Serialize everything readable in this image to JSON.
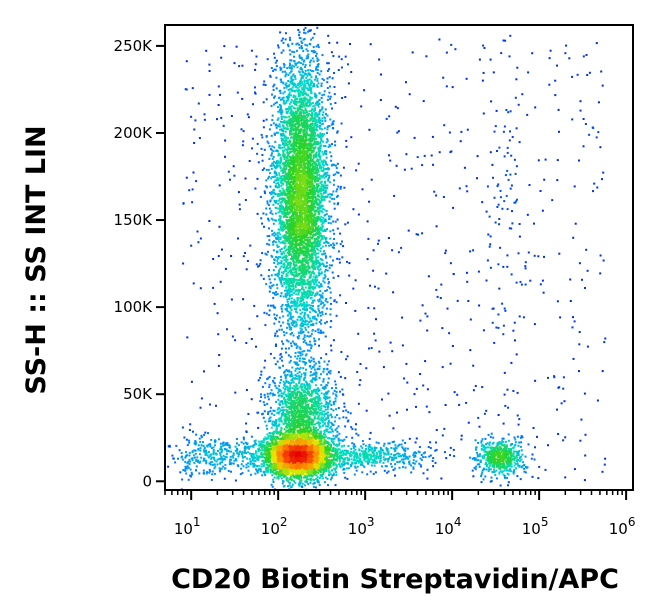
{
  "chart_data": {
    "type": "scatter",
    "plot_style": "flow cytometry density dot plot (blue to green to yellow to red = low to high event density)",
    "xlabel": "CD20 Biotin Streptavidin/APC",
    "ylabel": "SS-H :: SS INT LIN",
    "x_scale": "log",
    "xlim": [
      5,
      1200000
    ],
    "ylim": [
      -5000,
      262000
    ],
    "x_ticks": [
      {
        "value": 10,
        "base": "10",
        "exp": "1"
      },
      {
        "value": 100,
        "base": "10",
        "exp": "2"
      },
      {
        "value": 1000,
        "base": "10",
        "exp": "3"
      },
      {
        "value": 10000,
        "base": "10",
        "exp": "4"
      },
      {
        "value": 100000,
        "base": "10",
        "exp": "5"
      },
      {
        "value": 1000000,
        "base": "10",
        "exp": "6"
      }
    ],
    "y_ticks": [
      {
        "value": 0,
        "label": "0"
      },
      {
        "value": 50000,
        "label": "50K"
      },
      {
        "value": 100000,
        "label": "100K"
      },
      {
        "value": 150000,
        "label": "150K"
      },
      {
        "value": 200000,
        "label": "200K"
      },
      {
        "value": 250000,
        "label": "250K"
      }
    ],
    "populations": [
      {
        "x_center": 180,
        "y_center": 165000,
        "count": 5200,
        "x_spread_dec": 0.16,
        "y_spread": 40000
      },
      {
        "x_center": 160,
        "y_center": 15000,
        "count": 3400,
        "x_spread_dec": 0.2,
        "y_spread": 6000
      },
      {
        "x_center": 180,
        "y_center": 38000,
        "count": 1500,
        "x_spread_dec": 0.2,
        "y_spread": 15000
      },
      {
        "x_center": 35000,
        "y_center": 14000,
        "count": 550,
        "x_spread_dec": 0.14,
        "y_spread": 5000
      },
      {
        "x_center": 1200,
        "y_center": 15000,
        "count": 450,
        "x_spread_dec": 0.35,
        "y_spread": 4000
      },
      {
        "x_center": 20,
        "y_center": 15000,
        "count": 350,
        "x_spread_dec": 0.3,
        "y_spread": 6000
      },
      {
        "x_center": 40000,
        "y_center": 160000,
        "count": 60,
        "x_spread_dec": 0.12,
        "y_spread": 40000
      }
    ]
  }
}
